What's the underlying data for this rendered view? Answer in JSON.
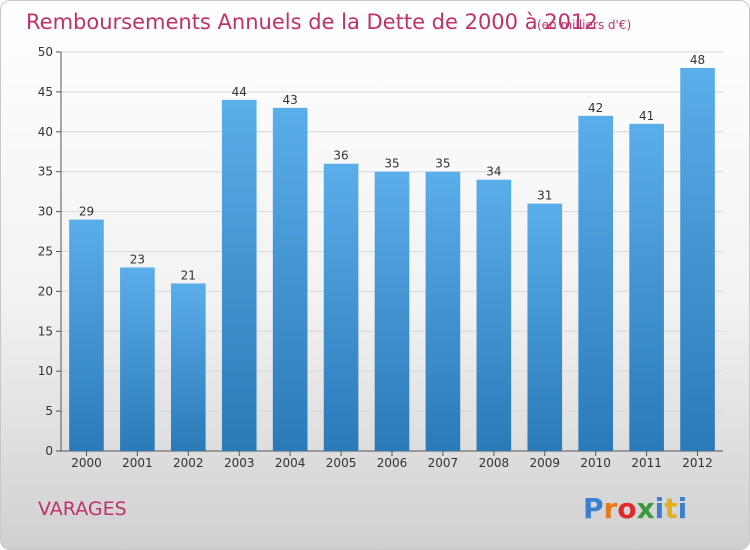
{
  "chart_data": {
    "type": "bar",
    "title": "Remboursements Annuels de la Dette de 2000 à 2012",
    "subtitle": "(en milliers d'€)",
    "categories": [
      "2000",
      "2001",
      "2002",
      "2003",
      "2004",
      "2005",
      "2006",
      "2007",
      "2008",
      "2009",
      "2010",
      "2011",
      "2012"
    ],
    "values": [
      29,
      23,
      21,
      44,
      43,
      36,
      35,
      35,
      34,
      31,
      42,
      41,
      48
    ],
    "ylim": [
      0,
      50
    ],
    "yticks": [
      0,
      5,
      10,
      15,
      20,
      25,
      30,
      35,
      40,
      45,
      50
    ],
    "grid": true,
    "bar_color_top": "#5aaeea",
    "bar_color_bottom": "#2a7ab8"
  },
  "commune": "VARAGES",
  "logo": {
    "text": "Proxiti",
    "colors": [
      "#3a7fd0",
      "#e87a1e",
      "#e02a2a",
      "#3a9a3a",
      "#3a7fd0",
      "#e0b020",
      "#3a7fd0"
    ]
  }
}
